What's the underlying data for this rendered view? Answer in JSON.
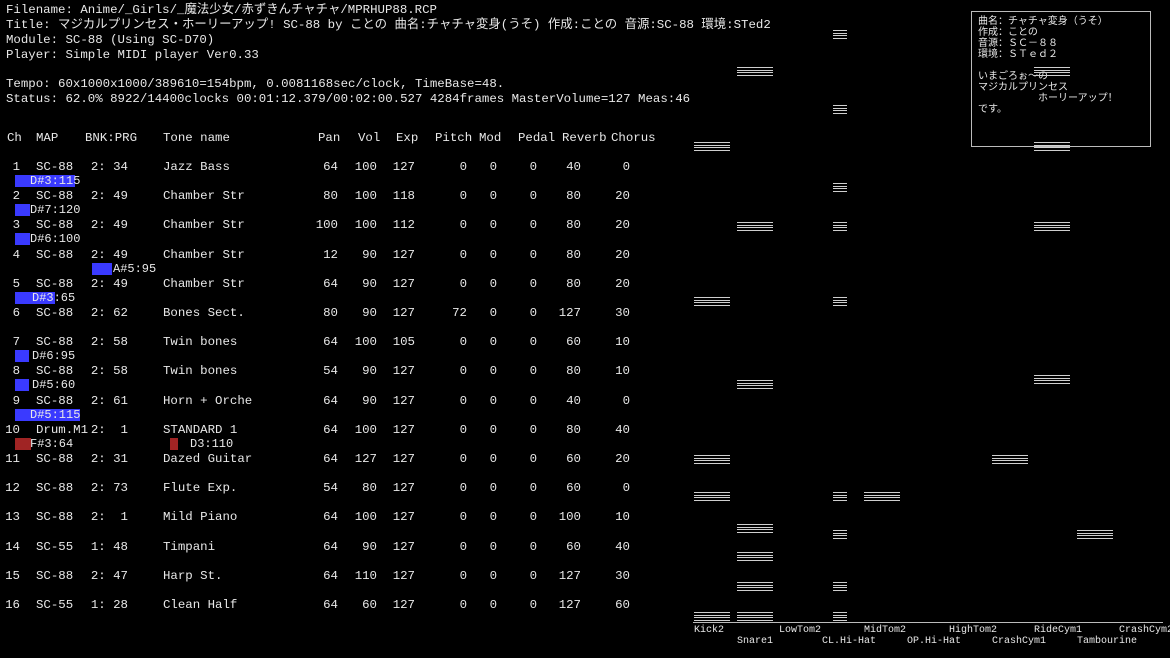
{
  "header": {
    "filename": "Filename: Anime/_Girls/_魔法少女/赤ずきんチャチャ/MPRHUP88.RCP",
    "title": "Title: マジカルプリンセス・ホーリーアップ! SC-88 by ことの 曲名:チャチャ変身(うそ) 作成:ことの 音源:SC-88 環境:STed2",
    "module": "Module: SC-88 (Using SC-D70)",
    "player": "Player: Simple MIDI player Ver0.33",
    "tempo": "Tempo: 60x1000x1000/389610=154bpm, 0.0081168sec/clock, TimeBase=48.",
    "status": "Status: 62.0% 8922/14400clocks 00:01:12.379/00:02:00.527 4284frames MasterVolume=127 Meas:46"
  },
  "columns": [
    "Ch",
    "MAP",
    "BNK:PRG",
    "Tone name",
    "Pan",
    "Vol",
    "Exp",
    "Pitch",
    "Mod",
    "Pedal",
    "Reverb",
    "Chorus"
  ],
  "channels": [
    {
      "ch": "1",
      "map": "SC-88",
      "prg": "2: 34",
      "tone": "Jazz Bass",
      "pan": "64",
      "vol": "100",
      "exp": "127",
      "pitch": "0",
      "mod": "0",
      "pedal": "0",
      "reverb": "40",
      "chorus": "0",
      "notes": [
        {
          "label": "D#3:115",
          "color": "#3a3aff"
        }
      ]
    },
    {
      "ch": "2",
      "map": "SC-88",
      "prg": "2: 49",
      "tone": "Chamber Str",
      "pan": "80",
      "vol": "100",
      "exp": "118",
      "pitch": "0",
      "mod": "0",
      "pedal": "0",
      "reverb": "80",
      "chorus": "20",
      "notes": [
        {
          "label": "D#7:120",
          "color": "#3a3aff"
        }
      ]
    },
    {
      "ch": "3",
      "map": "SC-88",
      "prg": "2: 49",
      "tone": "Chamber Str",
      "pan": "100",
      "vol": "100",
      "exp": "112",
      "pitch": "0",
      "mod": "0",
      "pedal": "0",
      "reverb": "80",
      "chorus": "20",
      "notes": [
        {
          "label": "D#6:100",
          "color": "#3a3aff"
        }
      ]
    },
    {
      "ch": "4",
      "map": "SC-88",
      "prg": "2: 49",
      "tone": "Chamber Str",
      "pan": "12",
      "vol": "90",
      "exp": "127",
      "pitch": "0",
      "mod": "0",
      "pedal": "0",
      "reverb": "80",
      "chorus": "20",
      "notes": [
        {
          "label": "A#5:95",
          "color": "#3a3aff"
        }
      ]
    },
    {
      "ch": "5",
      "map": "SC-88",
      "prg": "2: 49",
      "tone": "Chamber Str",
      "pan": "64",
      "vol": "90",
      "exp": "127",
      "pitch": "0",
      "mod": "0",
      "pedal": "0",
      "reverb": "80",
      "chorus": "20",
      "notes": [
        {
          "label": "D#3:65",
          "color": "#3a3aff"
        }
      ]
    },
    {
      "ch": "6",
      "map": "SC-88",
      "prg": "2: 62",
      "tone": "Bones Sect.",
      "pan": "80",
      "vol": "90",
      "exp": "127",
      "pitch": "72",
      "mod": "0",
      "pedal": "0",
      "reverb": "127",
      "chorus": "30",
      "notes": []
    },
    {
      "ch": "7",
      "map": "SC-88",
      "prg": "2: 58",
      "tone": "Twin bones",
      "pan": "64",
      "vol": "100",
      "exp": "105",
      "pitch": "0",
      "mod": "0",
      "pedal": "0",
      "reverb": "60",
      "chorus": "10",
      "notes": [
        {
          "label": "D#6:95",
          "color": "#3a3aff"
        }
      ]
    },
    {
      "ch": "8",
      "map": "SC-88",
      "prg": "2: 58",
      "tone": "Twin bones",
      "pan": "54",
      "vol": "90",
      "exp": "127",
      "pitch": "0",
      "mod": "0",
      "pedal": "0",
      "reverb": "80",
      "chorus": "10",
      "notes": [
        {
          "label": "D#5:60",
          "color": "#3a3aff"
        }
      ]
    },
    {
      "ch": "9",
      "map": "SC-88",
      "prg": "2: 61",
      "tone": "Horn + Orche",
      "pan": "64",
      "vol": "90",
      "exp": "127",
      "pitch": "0",
      "mod": "0",
      "pedal": "0",
      "reverb": "40",
      "chorus": "0",
      "notes": [
        {
          "label": "D#5:115",
          "color": "#3a3aff"
        }
      ]
    },
    {
      "ch": "10",
      "map": "Drum.M1",
      "prg": "2:  1",
      "tone": "STANDARD 1",
      "pan": "64",
      "vol": "100",
      "exp": "127",
      "pitch": "0",
      "mod": "0",
      "pedal": "0",
      "reverb": "80",
      "chorus": "40",
      "notes": [
        {
          "label": "F#3:64",
          "color": "#a02424"
        },
        {
          "label": "D3:110",
          "color": "#a02424"
        }
      ]
    },
    {
      "ch": "11",
      "map": "SC-88",
      "prg": "2: 31",
      "tone": "Dazed Guitar",
      "pan": "64",
      "vol": "127",
      "exp": "127",
      "pitch": "0",
      "mod": "0",
      "pedal": "0",
      "reverb": "60",
      "chorus": "20",
      "notes": []
    },
    {
      "ch": "12",
      "map": "SC-88",
      "prg": "2: 73",
      "tone": "Flute Exp.",
      "pan": "54",
      "vol": "80",
      "exp": "127",
      "pitch": "0",
      "mod": "0",
      "pedal": "0",
      "reverb": "60",
      "chorus": "0",
      "notes": []
    },
    {
      "ch": "13",
      "map": "SC-88",
      "prg": "2:  1",
      "tone": "Mild Piano",
      "pan": "64",
      "vol": "100",
      "exp": "127",
      "pitch": "0",
      "mod": "0",
      "pedal": "0",
      "reverb": "100",
      "chorus": "10",
      "notes": []
    },
    {
      "ch": "14",
      "map": "SC-55",
      "prg": "1: 48",
      "tone": "Timpani",
      "pan": "64",
      "vol": "90",
      "exp": "127",
      "pitch": "0",
      "mod": "0",
      "pedal": "0",
      "reverb": "60",
      "chorus": "40",
      "notes": []
    },
    {
      "ch": "15",
      "map": "SC-88",
      "prg": "2: 47",
      "tone": "Harp St.",
      "pan": "64",
      "vol": "110",
      "exp": "127",
      "pitch": "0",
      "mod": "0",
      "pedal": "0",
      "reverb": "127",
      "chorus": "30",
      "notes": []
    },
    {
      "ch": "16",
      "map": "SC-55",
      "prg": "1: 28",
      "tone": "Clean Half",
      "pan": "64",
      "vol": "60",
      "exp": "127",
      "pitch": "0",
      "mod": "0",
      "pedal": "0",
      "reverb": "127",
      "chorus": "60",
      "notes": []
    }
  ],
  "info_box": "曲名：チャチャ変身（うそ）\n作成：ことの\n音源：ＳＣ－８８\n環境：ＳＴｅｄ２\n\nいまごろぉ～の\nマジカルプリンセス\n　　　　　　ホーリーアップ！\nです。",
  "drums": [
    "Kick2",
    "Snare1",
    "LowTom2",
    "CL.Hi-Hat",
    "MidTom2",
    "OP.Hi-Hat",
    "HighTom2",
    "CrashCym1",
    "RideCym1",
    "Tambourine",
    "CrashCym2"
  ]
}
